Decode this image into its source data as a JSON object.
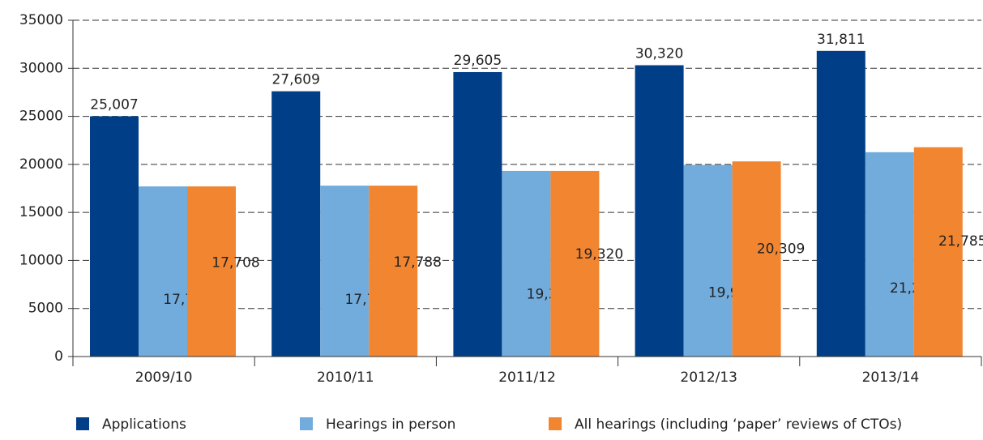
{
  "chart_data": {
    "type": "bar",
    "categories": [
      "2009/10",
      "2010/11",
      "2011/12",
      "2012/13",
      "2013/14"
    ],
    "series": [
      {
        "name": "Applications",
        "color": "#003f87",
        "values": [
          25007,
          27609,
          29605,
          30320,
          31811
        ],
        "value_labels": [
          "25,007",
          "27,609",
          "29,605",
          "30,320",
          "31,811"
        ]
      },
      {
        "name": "Hearings in person",
        "color": "#72acdc",
        "values": [
          17708,
          17788,
          19320,
          19941,
          21269
        ],
        "value_labels": [
          "17,708",
          "17,788",
          "19,320",
          "19,941",
          "21,269"
        ]
      },
      {
        "name": "All hearings (including ‘paper’ reviews of CTOs)",
        "color": "#f28530",
        "values": [
          17708,
          17788,
          19320,
          20309,
          21785
        ],
        "value_labels": [
          "17,708",
          "17,788",
          "19,320",
          "20,309",
          "21,785"
        ]
      }
    ],
    "ylim": [
      0,
      35000
    ],
    "yticks": [
      0,
      5000,
      10000,
      15000,
      20000,
      25000,
      30000,
      35000
    ],
    "grid": true
  }
}
